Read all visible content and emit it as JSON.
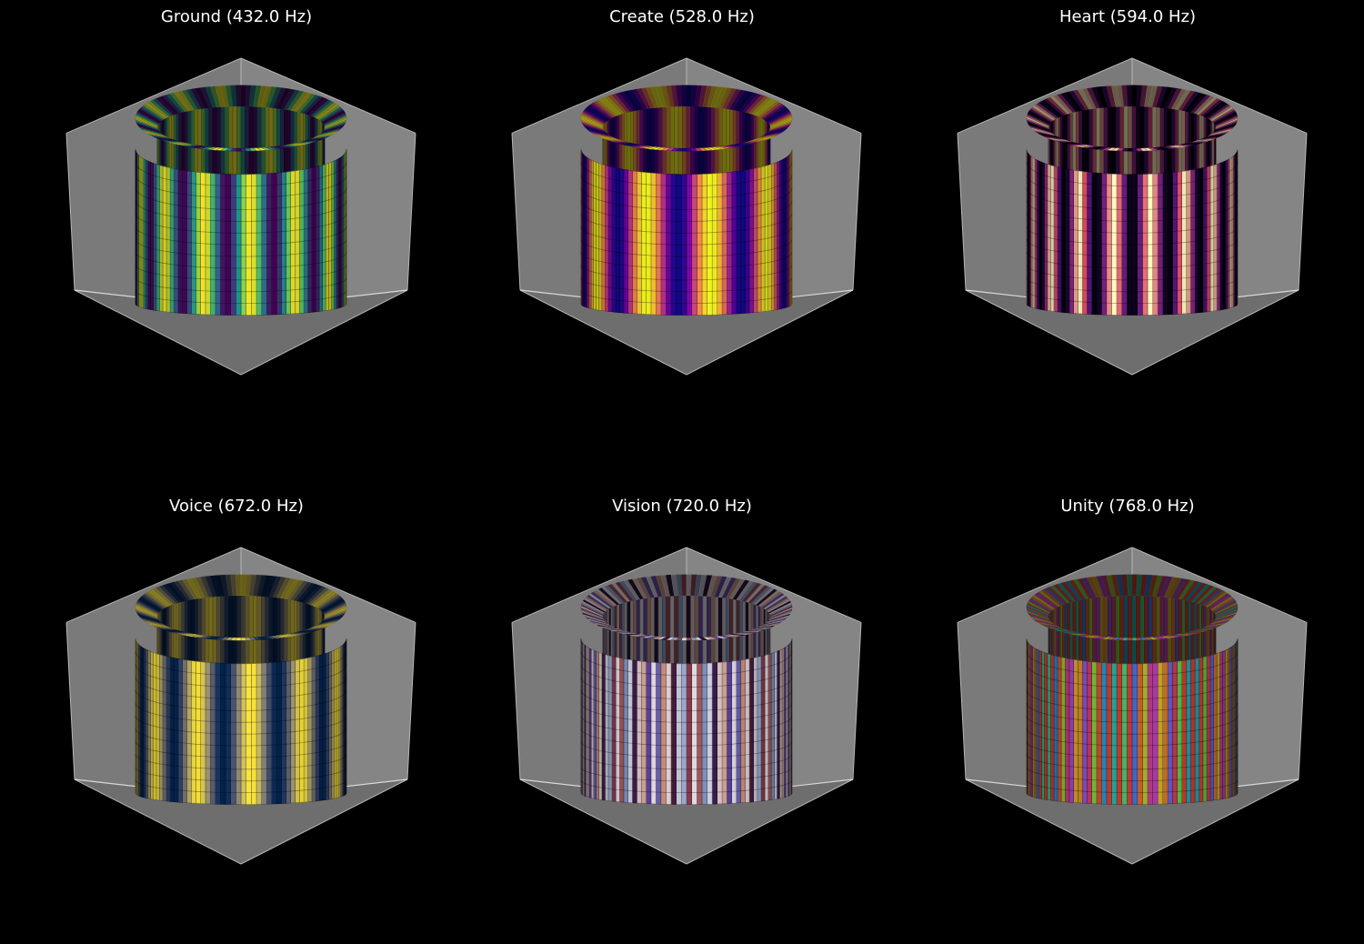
{
  "chart_data": [
    {
      "type": "surface",
      "title": "Ground (432.0 Hz)",
      "colormap": "viridis",
      "colormap_stops": [
        "#440154",
        "#3b528b",
        "#21918c",
        "#5ec962",
        "#fde725"
      ],
      "bands_per_revolution": 14
    },
    {
      "type": "surface",
      "title": "Create (528.0 Hz)",
      "colormap": "plasma",
      "colormap_stops": [
        "#0d0887",
        "#7e03a8",
        "#cc4778",
        "#f89540",
        "#f0f921"
      ],
      "bands_per_revolution": 10
    },
    {
      "type": "surface",
      "title": "Heart (594.0 Hz)",
      "colormap": "magma",
      "colormap_stops": [
        "#000004",
        "#3b0f70",
        "#8c2981",
        "#de4968",
        "#fcfdbf"
      ],
      "bands_per_revolution": 18
    },
    {
      "type": "surface",
      "title": "Voice (672.0 Hz)",
      "colormap": "cividis",
      "colormap_stops": [
        "#00224e",
        "#35456c",
        "#666970",
        "#948e77",
        "#c8b866",
        "#fee838"
      ],
      "bands_per_revolution": 12
    },
    {
      "type": "surface",
      "title": "Vision (720.0 Hz)",
      "colormap": "twilight",
      "colormap_stops": [
        "#e2d9e2",
        "#7e96c0",
        "#5e43a5",
        "#2f1436",
        "#8a3c4b",
        "#c8907a",
        "#e2d9e2"
      ],
      "bands_per_revolution": 24
    },
    {
      "type": "surface",
      "title": "Unity (768.0 Hz)",
      "colormap": "hsv-muted",
      "colormap_stops": [
        "#c0392b",
        "#c9a227",
        "#5fbf3a",
        "#1fa39a",
        "#2e6fc9",
        "#a83ab5",
        "#c0392b"
      ],
      "bands_per_revolution": 30
    }
  ]
}
